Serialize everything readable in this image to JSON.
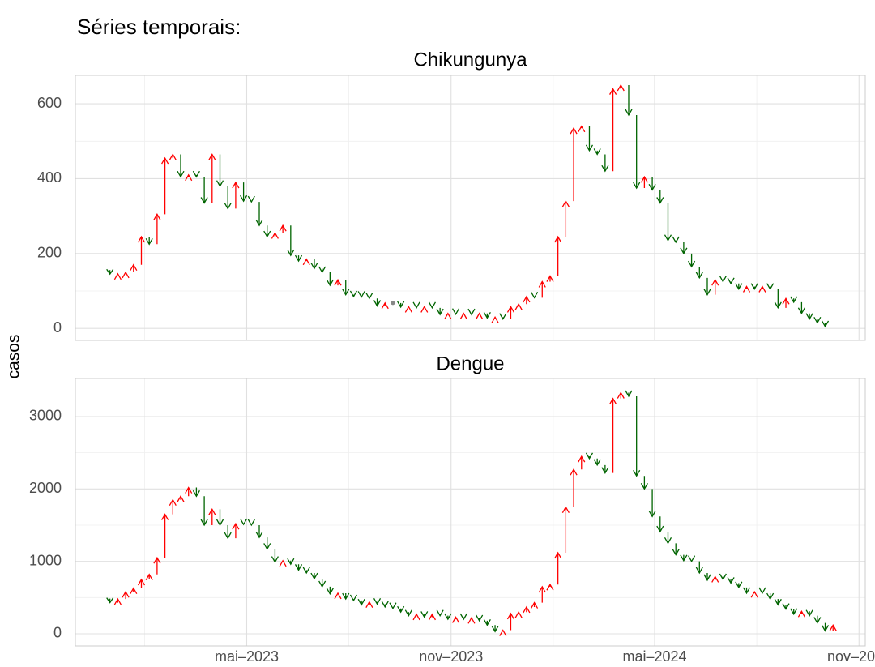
{
  "title": "Séries temporais:",
  "y_label": "casos",
  "chart_data": [
    {
      "type": "arrow",
      "title": "Chikungunya",
      "up_color": "#ff0000",
      "down_color": "#006400",
      "same_color": "#888888",
      "x": [
        0,
        1,
        2,
        3,
        4,
        5,
        6,
        7,
        8,
        9,
        10,
        11,
        12,
        13,
        14,
        15,
        16,
        17,
        18,
        19,
        20,
        21,
        22,
        23,
        24,
        25,
        26,
        27,
        28,
        29,
        30,
        31,
        32,
        33,
        34,
        35,
        36,
        37,
        38,
        39,
        40,
        41,
        42,
        43,
        44,
        45,
        46,
        47,
        48,
        49,
        50,
        51,
        52,
        53,
        54,
        55,
        56,
        57,
        58,
        59,
        60,
        61,
        62,
        63,
        64,
        65,
        66,
        67,
        68,
        69,
        70,
        71,
        72,
        73,
        74,
        75,
        76,
        77,
        78,
        79,
        80,
        81,
        82,
        83,
        84,
        85,
        86,
        87,
        88,
        89,
        90,
        91
      ],
      "values": [
        145,
        146,
        150,
        170,
        245,
        225,
        305,
        455,
        465,
        405,
        410,
        405,
        335,
        465,
        380,
        320,
        390,
        340,
        338,
        275,
        245,
        255,
        275,
        195,
        180,
        185,
        160,
        150,
        115,
        130,
        90,
        85,
        84,
        80,
        60,
        68,
        68,
        57,
        58,
        55,
        58,
        55,
        37,
        40,
        38,
        40,
        37,
        40,
        28,
        30,
        25,
        58,
        65,
        85,
        82,
        125,
        140,
        245,
        340,
        535,
        540,
        475,
        465,
        420,
        640,
        650,
        570,
        375,
        405,
        370,
        335,
        235,
        230,
        200,
        165,
        135,
        90,
        130,
        125,
        120,
        105,
        112,
        105,
        112,
        105,
        55,
        80,
        70,
        40,
        25,
        15,
        5
      ],
      "ylim": [
        -32,
        676
      ],
      "yticks": [
        0,
        200,
        400,
        600
      ],
      "yminorticks": [
        100,
        300,
        500
      ],
      "grid": true
    },
    {
      "type": "arrow",
      "title": "Dengue",
      "up_color": "#ff0000",
      "down_color": "#006400",
      "same_color": "#888888",
      "x": [
        0,
        1,
        2,
        3,
        4,
        5,
        6,
        7,
        8,
        9,
        10,
        11,
        12,
        13,
        14,
        15,
        16,
        17,
        18,
        19,
        20,
        21,
        22,
        23,
        24,
        25,
        26,
        27,
        28,
        29,
        30,
        31,
        32,
        33,
        34,
        35,
        36,
        37,
        38,
        39,
        40,
        41,
        42,
        43,
        44,
        45,
        46,
        47,
        48,
        49,
        50,
        51,
        52,
        53,
        54,
        55,
        56,
        57,
        58,
        59,
        60,
        61,
        62,
        63,
        64,
        65,
        66,
        67,
        68,
        69,
        70,
        71,
        72,
        73,
        74,
        75,
        76,
        77,
        78,
        79,
        80,
        81,
        82,
        83,
        84,
        85,
        86,
        87,
        88,
        89,
        90,
        91,
        92
      ],
      "values": [
        430,
        480,
        580,
        630,
        750,
        820,
        1050,
        1650,
        1850,
        1900,
        2020,
        1900,
        1500,
        1720,
        1500,
        1320,
        1520,
        1510,
        1500,
        1330,
        1170,
        990,
        1010,
        960,
        880,
        840,
        760,
        650,
        550,
        560,
        480,
        460,
        400,
        440,
        410,
        370,
        350,
        300,
        250,
        270,
        230,
        270,
        250,
        200,
        230,
        200,
        220,
        180,
        120,
        30,
        50,
        280,
        300,
        370,
        430,
        650,
        680,
        1120,
        1750,
        2270,
        2450,
        2420,
        2330,
        2220,
        3250,
        3330,
        3280,
        2180,
        2000,
        1620,
        1410,
        1250,
        1090,
        1010,
        1000,
        840,
        740,
        790,
        750,
        700,
        640,
        560,
        580,
        560,
        480,
        400,
        340,
        270,
        310,
        250,
        150,
        40,
        120
      ],
      "ylim": [
        -168,
        3526
      ],
      "yticks": [
        0,
        1000,
        2000,
        3000
      ],
      "yminorticks": [
        500,
        1500,
        2500
      ],
      "grid": true,
      "xlim": [
        -4.4,
        96.1
      ],
      "xticks": [
        {
          "value": 17.4,
          "label": "mai–2023"
        },
        {
          "value": 43.4,
          "label": "nov–2023"
        },
        {
          "value": 69.3,
          "label": "mai–2024"
        },
        {
          "value": 95.3,
          "label": "nov–20"
        }
      ],
      "xminorticks": [
        4.4,
        30.4,
        56.4,
        82.3
      ]
    }
  ]
}
